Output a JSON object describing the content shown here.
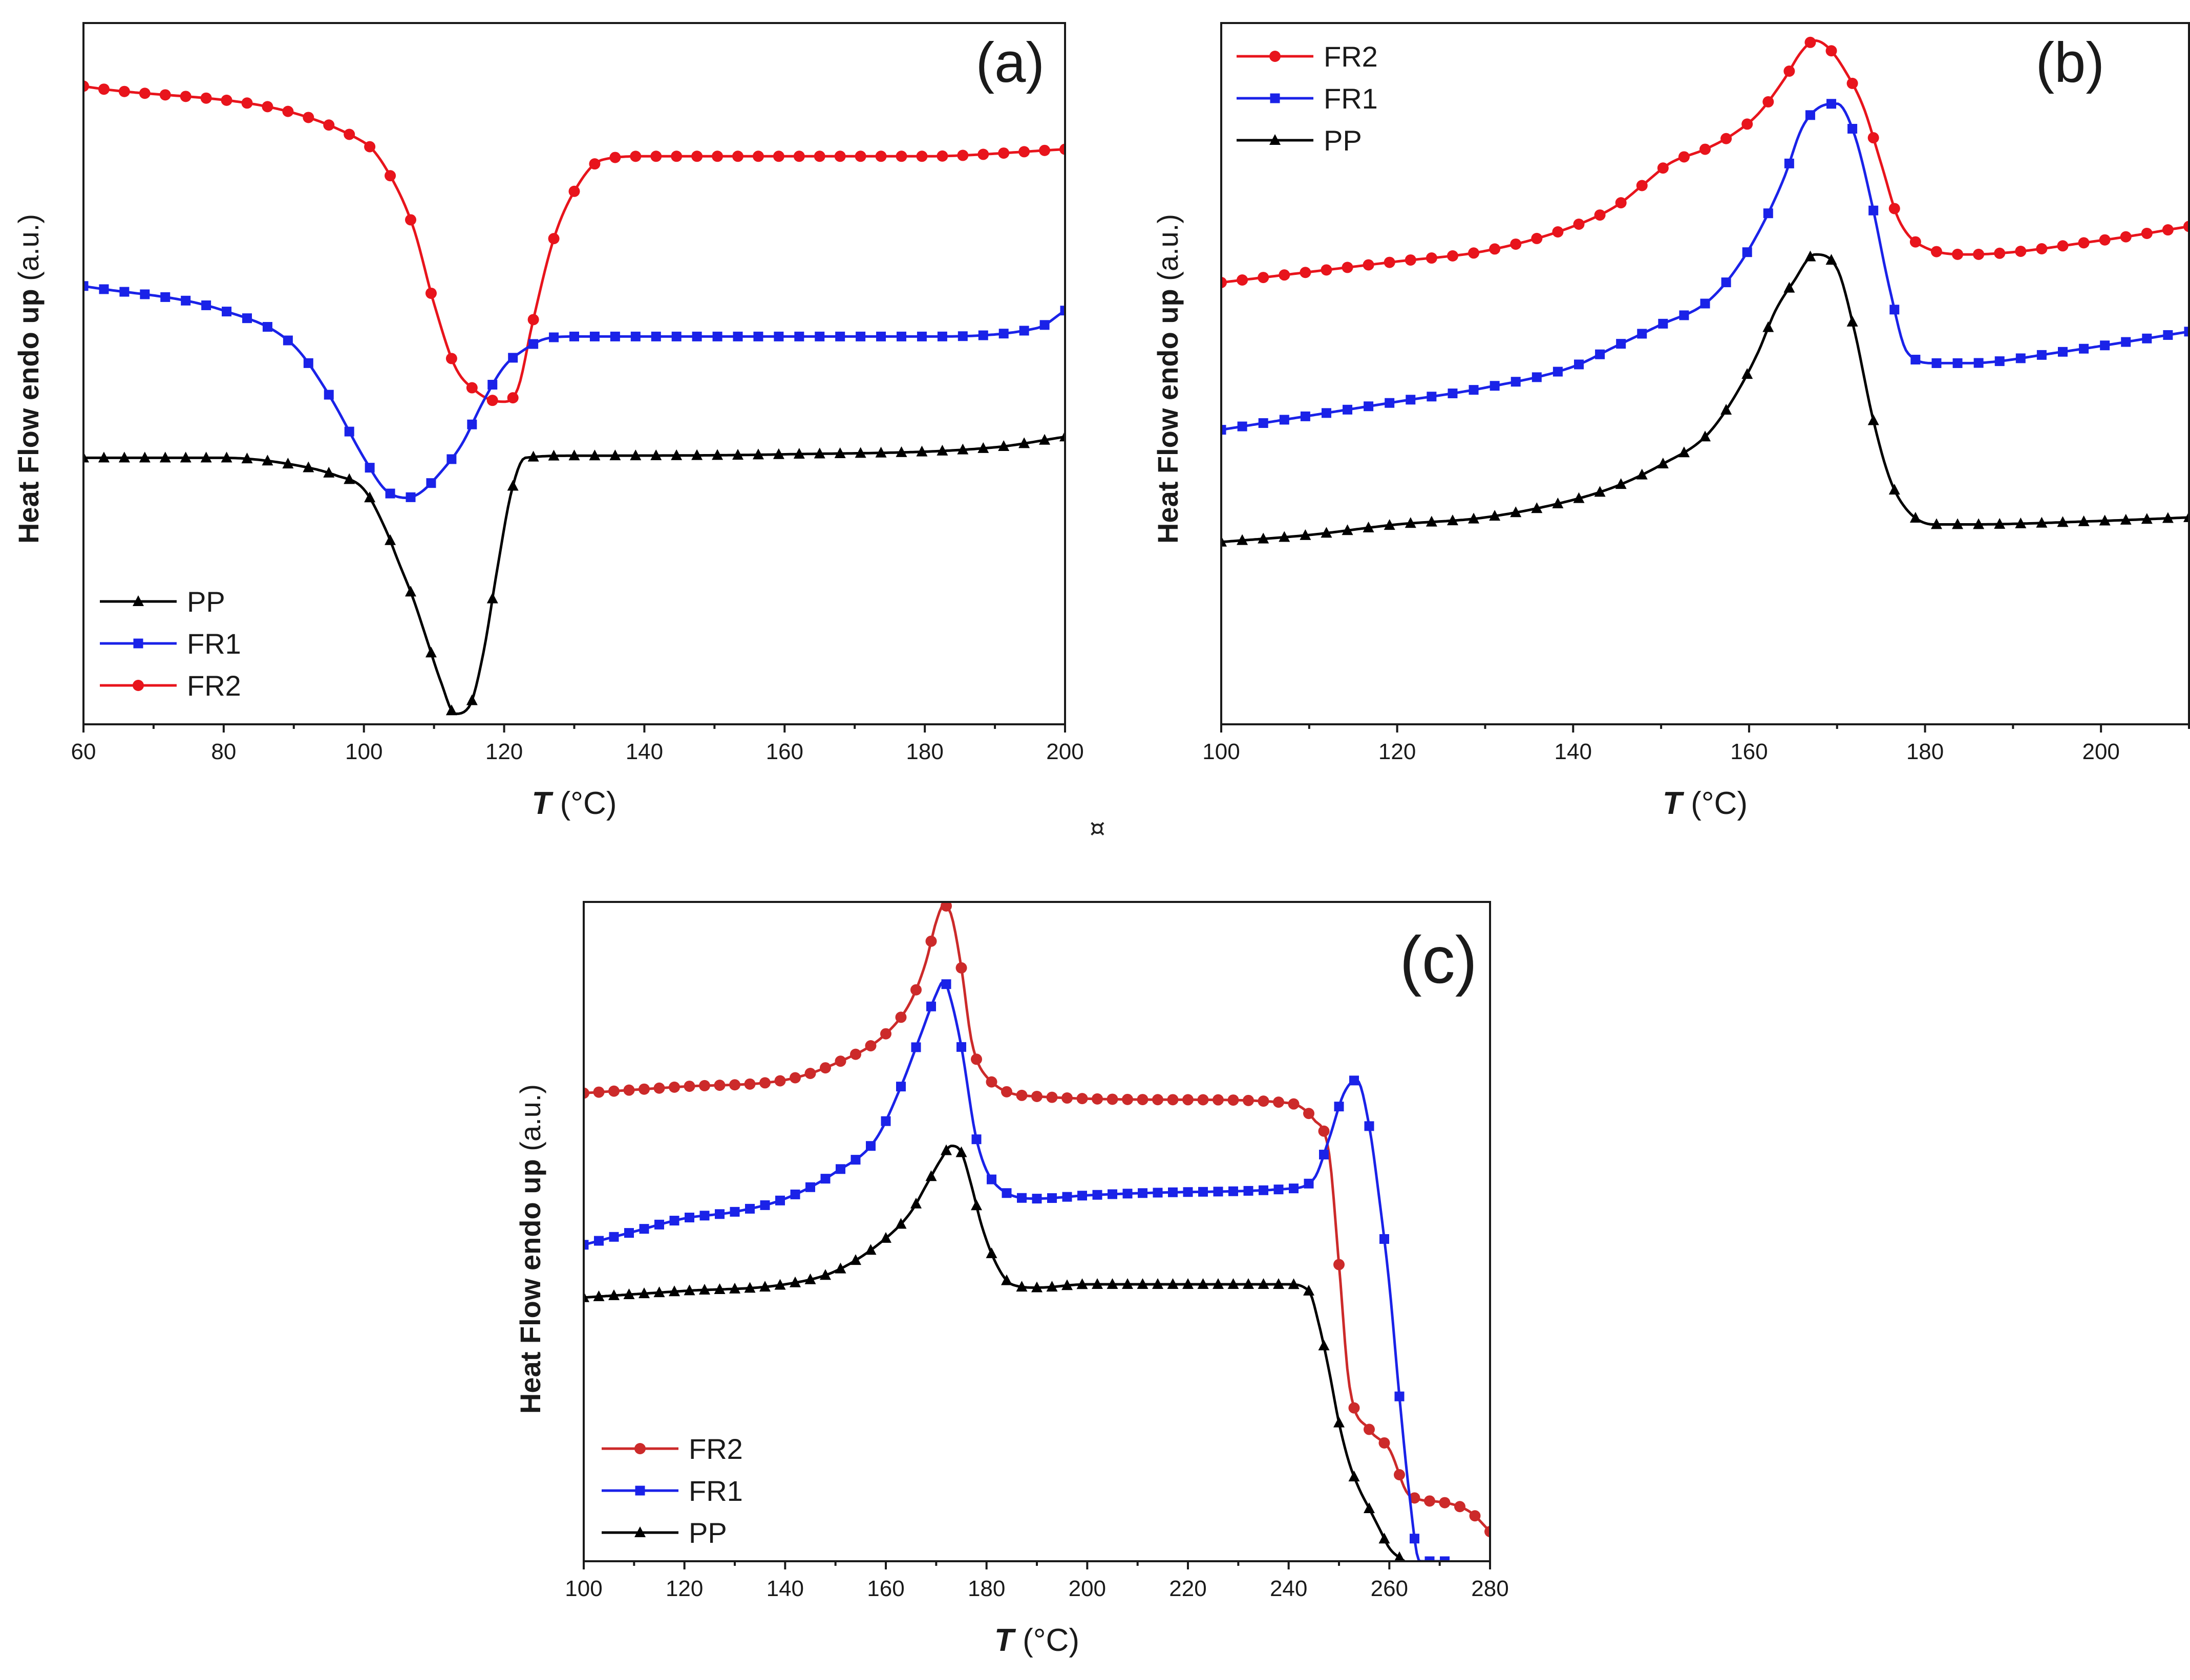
{
  "figure": {
    "stray_mark": "¤"
  },
  "chart_data": [
    {
      "panel": "a",
      "type": "line",
      "panel_label": "(a)",
      "xlabel_italic": "T",
      "xlabel_rest": " (°C)",
      "ylabel_bold": "Heat Flow endo up",
      "ylabel_rest": " (a.u.)",
      "xlim": [
        60,
        200
      ],
      "ylim": [
        0,
        100
      ],
      "xticks": [
        60,
        80,
        100,
        120,
        140,
        160,
        180,
        200
      ],
      "legend_position": "bottom-left",
      "legend": [
        "PP",
        "FR1",
        "FR2"
      ],
      "series": [
        {
          "name": "FR2",
          "color": "#e8141c",
          "marker": "circle",
          "x": [
            60,
            100,
            103,
            107,
            110,
            113,
            116,
            118,
            120,
            122,
            124,
            127,
            130,
            134,
            140,
            160,
            180,
            200
          ],
          "y": [
            91,
            83,
            79.5,
            71,
            60,
            51,
            47.5,
            46.3,
            46,
            48,
            57,
            69,
            76,
            80.5,
            81,
            81,
            81,
            82
          ]
        },
        {
          "name": "FR1",
          "color": "#1a22e8",
          "marker": "square",
          "x": [
            60,
            80,
            90,
            95,
            100,
            103,
            106,
            108,
            111,
            114,
            117,
            120,
            123,
            126,
            130,
            160,
            180,
            196,
            200
          ],
          "y": [
            62.5,
            59,
            54,
            47,
            38,
            33.5,
            32.3,
            33,
            36,
            40,
            46,
            51,
            53.5,
            55,
            55.3,
            55.3,
            55.3,
            56.5,
            59
          ]
        },
        {
          "name": "PP",
          "color": "#000000",
          "marker": "triangle",
          "x": [
            60,
            80,
            90,
            96,
            100,
            103,
            105,
            107,
            109,
            111,
            113,
            115,
            117,
            119,
            121,
            123,
            130,
            160,
            190,
            200
          ],
          "y": [
            38,
            38,
            37,
            35.5,
            33.5,
            28,
            23,
            18,
            12,
            6,
            1.5,
            2.5,
            10,
            22,
            33,
            38,
            38.3,
            38.5,
            39.5,
            41
          ]
        }
      ]
    },
    {
      "panel": "b",
      "type": "line",
      "panel_label": "(b)",
      "xlabel_italic": "T",
      "xlabel_rest": " (°C)",
      "ylabel_bold": "Heat Flow endo up",
      "ylabel_rest": " (a.u.)",
      "xlim": [
        100,
        210
      ],
      "ylim": [
        0,
        100
      ],
      "xticks": [
        100,
        120,
        140,
        160,
        180,
        200
      ],
      "legend_position": "top-left",
      "legend": [
        "FR2",
        "FR1",
        "PP"
      ],
      "series": [
        {
          "name": "FR2",
          "color": "#e8141c",
          "marker": "circle",
          "x": [
            100,
            120,
            130,
            140,
            145,
            148,
            151,
            155,
            158,
            161,
            164,
            166,
            167.5,
            169,
            171,
            173,
            175,
            177,
            180,
            185,
            200,
            210
          ],
          "y": [
            63,
            66,
            67.5,
            71,
            74,
            77,
            80,
            82,
            84,
            87,
            92,
            96,
            97.5,
            96.5,
            93,
            88,
            80,
            72,
            68,
            67,
            69,
            71
          ]
        },
        {
          "name": "FR1",
          "color": "#1a22e8",
          "marker": "square",
          "x": [
            100,
            110,
            120,
            130,
            140,
            145,
            150,
            155,
            158,
            161,
            164,
            166,
            168,
            170,
            172,
            174,
            176,
            178,
            181,
            185,
            195,
            210
          ],
          "y": [
            42,
            44,
            46,
            48,
            51,
            54,
            57,
            60,
            64,
            70,
            78,
            85,
            88,
            88.5,
            84,
            74,
            62,
            53,
            51.5,
            51.5,
            53,
            56
          ]
        },
        {
          "name": "PP",
          "color": "#000000",
          "marker": "triangle",
          "x": [
            100,
            110,
            120,
            130,
            140,
            145,
            150,
            155,
            158,
            161,
            163,
            165,
            167.5,
            170,
            172,
            174,
            176,
            178,
            181,
            185,
            200,
            210
          ],
          "y": [
            26,
            27,
            28.5,
            29.5,
            32,
            34,
            37,
            41,
            46,
            53,
            59,
            63,
            67,
            65,
            56,
            44,
            35,
            30.5,
            28.5,
            28.5,
            29,
            29.5
          ]
        }
      ]
    },
    {
      "panel": "c",
      "type": "line",
      "panel_label": "(c)",
      "xlabel_italic": "T",
      "xlabel_rest": " (°C)",
      "ylabel_bold": "Heat Flow endo up",
      "ylabel_rest": " (a.u.)",
      "xlim": [
        100,
        280
      ],
      "ylim": [
        0,
        100
      ],
      "xticks": [
        100,
        120,
        140,
        160,
        180,
        200,
        220,
        240,
        260,
        280
      ],
      "legend_position": "bottom-left",
      "legend": [
        "FR2",
        "FR1",
        "PP"
      ],
      "series": [
        {
          "name": "FR2",
          "color": "#cc2a2a",
          "marker": "circle",
          "x": [
            100,
            120,
            140,
            150,
            160,
            165,
            168,
            170,
            171.5,
            173,
            175,
            177,
            180,
            190,
            220,
            240,
            245,
            248,
            250,
            252,
            256,
            260,
            264,
            270,
            276,
            280
          ],
          "y": [
            71,
            72,
            73,
            75.5,
            80,
            85,
            91,
            97,
            99.5,
            98,
            90,
            79,
            73.5,
            70.5,
            70,
            69.5,
            67,
            62,
            45,
            27,
            20,
            17,
            10,
            9,
            7.5,
            4.5
          ]
        },
        {
          "name": "FR1",
          "color": "#1a22e8",
          "marker": "square",
          "x": [
            100,
            110,
            120,
            130,
            140,
            150,
            158,
            163,
            167,
            170,
            171.5,
            173,
            175,
            178,
            182,
            190,
            200,
            220,
            240,
            245,
            248,
            251,
            253.5,
            256,
            258,
            260,
            262,
            264,
            266,
            271
          ],
          "y": [
            48,
            50,
            52,
            53,
            55,
            59,
            64,
            72,
            80,
            86,
            88,
            85,
            78,
            64,
            57,
            55,
            55.5,
            56,
            56.5,
            58,
            64,
            71,
            73,
            66,
            55,
            42,
            25,
            10,
            0,
            0
          ]
        },
        {
          "name": "PP",
          "color": "#000000",
          "marker": "triangle",
          "x": [
            100,
            120,
            140,
            150,
            160,
            165,
            168,
            171,
            173,
            175,
            177,
            179,
            182,
            185,
            190,
            200,
            220,
            240,
            244,
            246,
            248,
            250,
            252,
            254,
            256,
            258,
            260,
            263
          ],
          "y": [
            40,
            41,
            42,
            44,
            49,
            53,
            57,
            61,
            63,
            62,
            57,
            51,
            45,
            42,
            41.5,
            42,
            42,
            42,
            41,
            36,
            29,
            21,
            15,
            11,
            8,
            5,
            2,
            0
          ]
        }
      ]
    }
  ]
}
